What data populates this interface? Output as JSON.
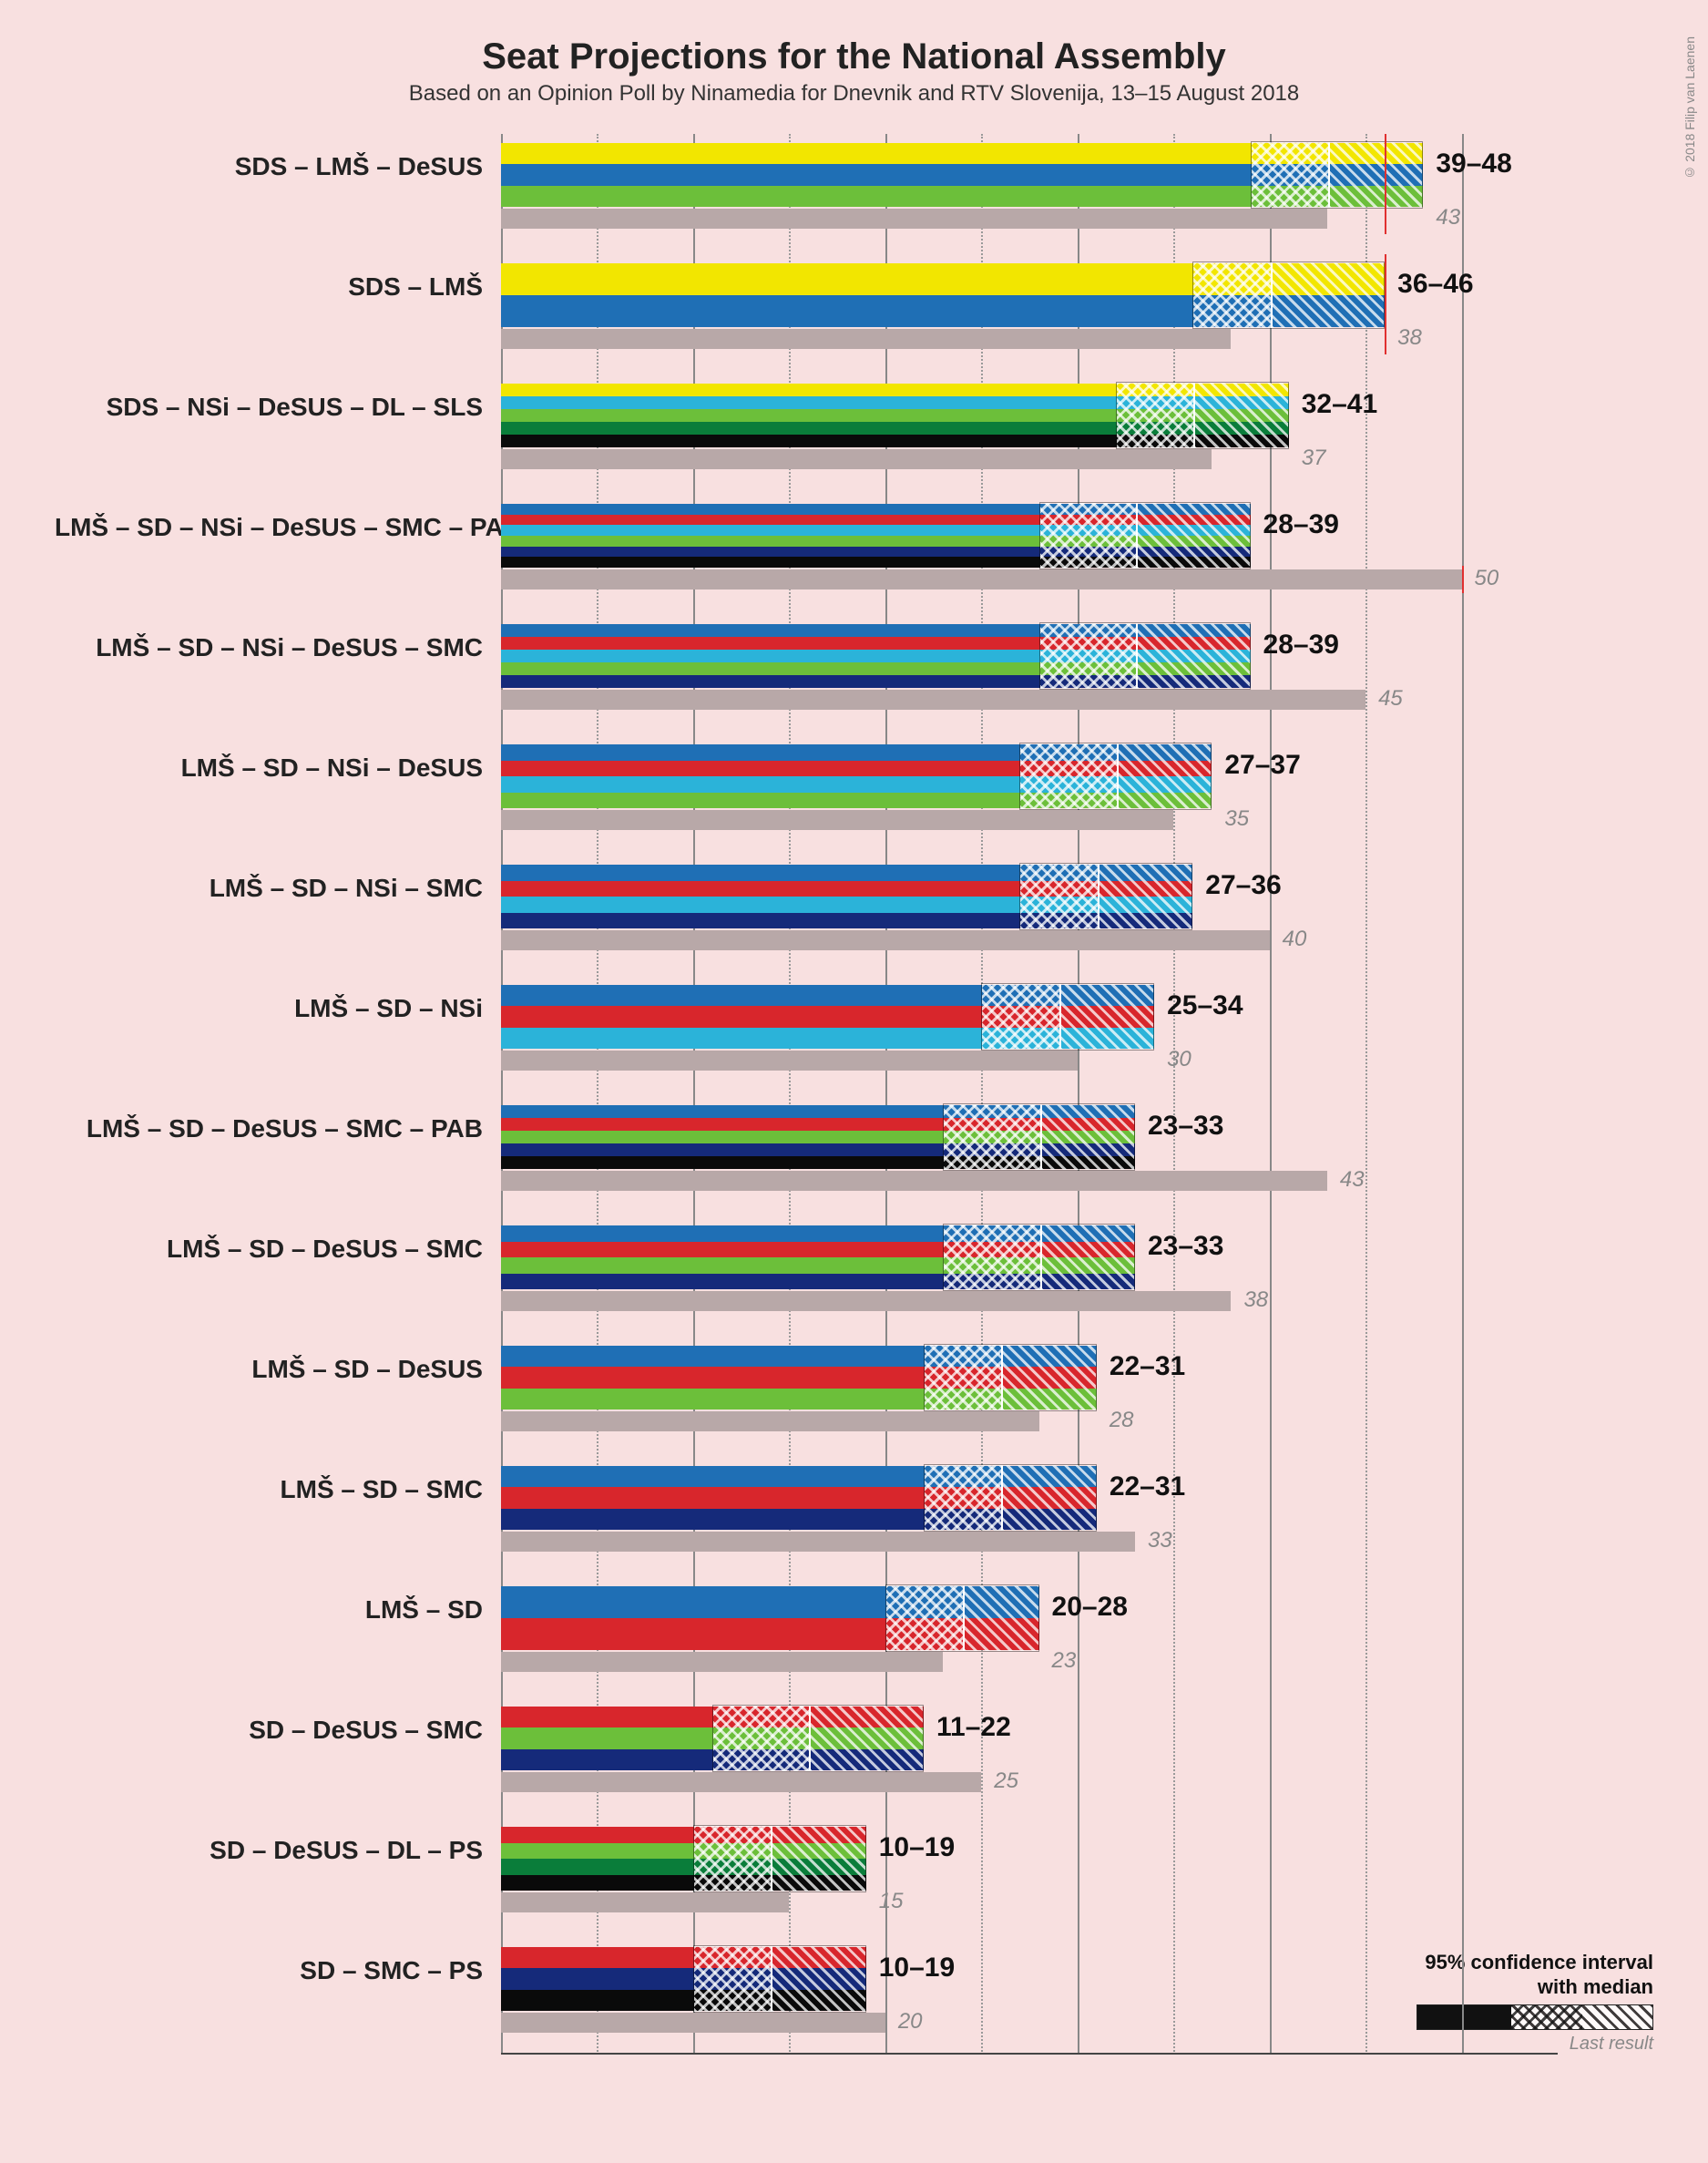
{
  "title": "Seat Projections for the National Assembly",
  "subtitle": "Based on an Opinion Poll by Ninamedia for Dnevnik and RTV Slovenija, 13–15 August 2018",
  "credit": "© 2018 Filip van Laenen",
  "legend": {
    "ci_label": "95% confidence interval\nwith median",
    "last_label": "Last result"
  },
  "chart": {
    "type": "bar",
    "xmin": 0,
    "xmax": 55,
    "major_ticks": [
      0,
      10,
      20,
      30,
      40,
      50
    ],
    "minor_ticks": [
      5,
      15,
      25,
      35,
      45
    ],
    "majority_line": 46,
    "background_color": "#f8e0e0",
    "grid_major_color": "#888888",
    "grid_minor_color": "#999999",
    "last_bar_color": "#b8a8a8",
    "majority_color": "#e03030",
    "label_fontsize": 28,
    "range_fontsize": 30,
    "last_fontsize": 24,
    "party_colors": {
      "SDS": "#f2e600",
      "LMS": "#1f6fb5",
      "DeSUS": "#6cbf3a",
      "NSi": "#2bb3d9",
      "DL": "#0a7d3a",
      "SLS": "#0a0a0a",
      "SD": "#d8262c",
      "SMC": "#152a7a",
      "PAB": "#0a0a0a",
      "PS": "#0a0a0a"
    },
    "rows": [
      {
        "label": "SDS – LMŠ – DeSUS",
        "parties": [
          "SDS",
          "LMS",
          "DeSUS"
        ],
        "low": 39,
        "high": 48,
        "median": 43,
        "last": 43,
        "show_majority": true
      },
      {
        "label": "SDS – LMŠ",
        "parties": [
          "SDS",
          "LMS"
        ],
        "low": 36,
        "high": 46,
        "median": 40,
        "last": 38,
        "show_majority": true
      },
      {
        "label": "SDS – NSi – DeSUS – DL – SLS",
        "parties": [
          "SDS",
          "NSi",
          "DeSUS",
          "DL",
          "SLS"
        ],
        "low": 32,
        "high": 41,
        "median": 36,
        "last": 37
      },
      {
        "label": "LMŠ – SD – NSi – DeSUS – SMC – PAB",
        "parties": [
          "LMS",
          "SD",
          "NSi",
          "DeSUS",
          "SMC",
          "PAB"
        ],
        "low": 28,
        "high": 39,
        "median": 33,
        "last": 50,
        "last_marker": 50
      },
      {
        "label": "LMŠ – SD – NSi – DeSUS – SMC",
        "parties": [
          "LMS",
          "SD",
          "NSi",
          "DeSUS",
          "SMC"
        ],
        "low": 28,
        "high": 39,
        "median": 33,
        "last": 45
      },
      {
        "label": "LMŠ – SD – NSi – DeSUS",
        "parties": [
          "LMS",
          "SD",
          "NSi",
          "DeSUS"
        ],
        "low": 27,
        "high": 37,
        "median": 32,
        "last": 35
      },
      {
        "label": "LMŠ – SD – NSi – SMC",
        "parties": [
          "LMS",
          "SD",
          "NSi",
          "SMC"
        ],
        "low": 27,
        "high": 36,
        "median": 31,
        "last": 40
      },
      {
        "label": "LMŠ – SD – NSi",
        "parties": [
          "LMS",
          "SD",
          "NSi"
        ],
        "low": 25,
        "high": 34,
        "median": 29,
        "last": 30
      },
      {
        "label": "LMŠ – SD – DeSUS – SMC – PAB",
        "parties": [
          "LMS",
          "SD",
          "DeSUS",
          "SMC",
          "PAB"
        ],
        "low": 23,
        "high": 33,
        "median": 28,
        "last": 43
      },
      {
        "label": "LMŠ – SD – DeSUS – SMC",
        "parties": [
          "LMS",
          "SD",
          "DeSUS",
          "SMC"
        ],
        "low": 23,
        "high": 33,
        "median": 28,
        "last": 38
      },
      {
        "label": "LMŠ – SD – DeSUS",
        "parties": [
          "LMS",
          "SD",
          "DeSUS"
        ],
        "low": 22,
        "high": 31,
        "median": 26,
        "last": 28
      },
      {
        "label": "LMŠ – SD – SMC",
        "parties": [
          "LMS",
          "SD",
          "SMC"
        ],
        "low": 22,
        "high": 31,
        "median": 26,
        "last": 33
      },
      {
        "label": "LMŠ – SD",
        "parties": [
          "LMS",
          "SD"
        ],
        "low": 20,
        "high": 28,
        "median": 24,
        "last": 23
      },
      {
        "label": "SD – DeSUS – SMC",
        "parties": [
          "SD",
          "DeSUS",
          "SMC"
        ],
        "low": 11,
        "high": 22,
        "median": 16,
        "last": 25
      },
      {
        "label": "SD – DeSUS – DL – PS",
        "parties": [
          "SD",
          "DeSUS",
          "DL",
          "PS"
        ],
        "low": 10,
        "high": 19,
        "median": 14,
        "last": 15
      },
      {
        "label": "SD – SMC – PS",
        "parties": [
          "SD",
          "SMC",
          "PS"
        ],
        "low": 10,
        "high": 19,
        "median": 14,
        "last": 20
      }
    ]
  }
}
